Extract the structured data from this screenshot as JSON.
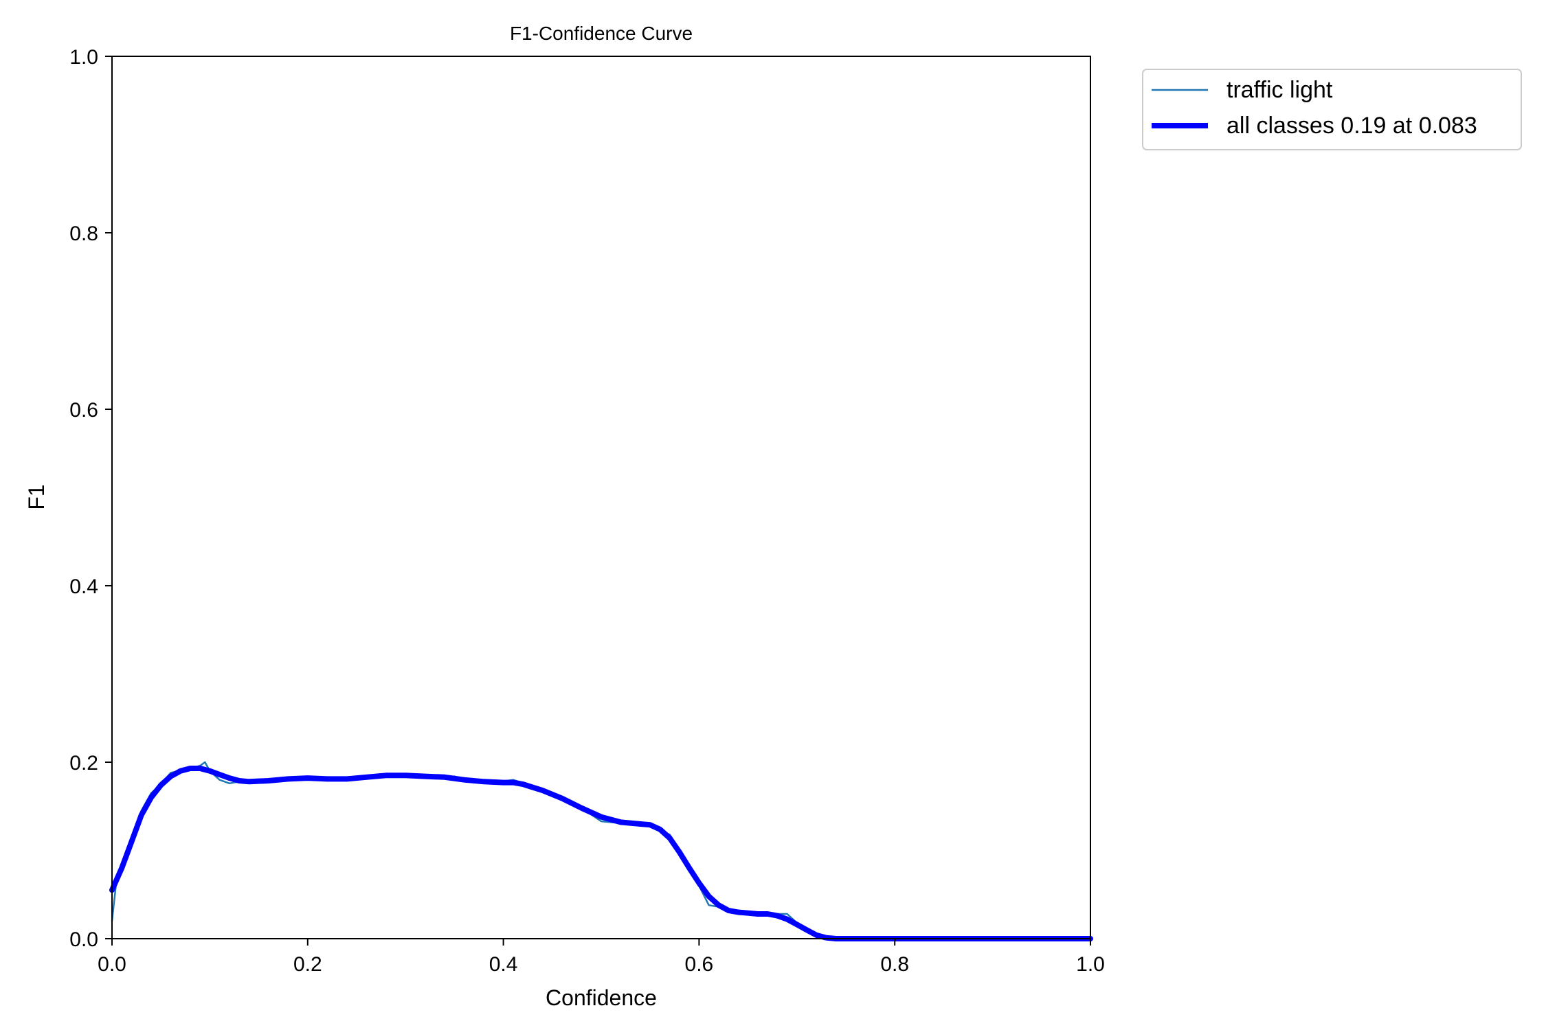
{
  "chart_data": {
    "type": "line",
    "title": "F1-Confidence Curve",
    "xlabel": "Confidence",
    "ylabel": "F1",
    "xlim": [
      0,
      1
    ],
    "ylim": [
      0,
      1
    ],
    "xticks": [
      "0.0",
      "0.2",
      "0.4",
      "0.6",
      "0.8",
      "1.0"
    ],
    "yticks": [
      "0.0",
      "0.2",
      "0.4",
      "0.6",
      "0.8",
      "1.0"
    ],
    "grid": false,
    "legend_position": "outside-top-right",
    "series": [
      {
        "name": "traffic light",
        "color": "#1f77b4",
        "x": [
          0.0,
          0.005,
          0.01,
          0.02,
          0.03,
          0.04,
          0.05,
          0.06,
          0.07,
          0.08,
          0.09,
          0.095,
          0.1,
          0.11,
          0.12,
          0.13,
          0.15,
          0.18,
          0.2,
          0.23,
          0.25,
          0.28,
          0.3,
          0.33,
          0.35,
          0.36,
          0.37,
          0.39,
          0.41,
          0.43,
          0.45,
          0.48,
          0.5,
          0.52,
          0.54,
          0.55,
          0.57,
          0.58,
          0.6,
          0.61,
          0.62,
          0.63,
          0.65,
          0.67,
          0.69,
          0.7,
          0.71,
          0.72,
          0.73,
          0.75,
          0.8,
          0.9,
          1.0
        ],
        "y": [
          0.02,
          0.07,
          0.085,
          0.115,
          0.145,
          0.165,
          0.175,
          0.188,
          0.19,
          0.193,
          0.196,
          0.2,
          0.19,
          0.18,
          0.176,
          0.178,
          0.179,
          0.181,
          0.182,
          0.181,
          0.183,
          0.185,
          0.186,
          0.183,
          0.184,
          0.18,
          0.177,
          0.177,
          0.18,
          0.173,
          0.165,
          0.148,
          0.133,
          0.131,
          0.132,
          0.127,
          0.118,
          0.1,
          0.06,
          0.038,
          0.036,
          0.032,
          0.03,
          0.028,
          0.028,
          0.018,
          0.01,
          0.003,
          0.0,
          0.0,
          0.0,
          0.0,
          0.0
        ]
      },
      {
        "name": "all classes 0.19 at 0.083",
        "color": "#0000ff",
        "x": [
          0.0,
          0.01,
          0.02,
          0.03,
          0.04,
          0.05,
          0.06,
          0.07,
          0.08,
          0.09,
          0.1,
          0.11,
          0.12,
          0.13,
          0.14,
          0.16,
          0.18,
          0.2,
          0.22,
          0.24,
          0.26,
          0.28,
          0.3,
          0.32,
          0.34,
          0.36,
          0.38,
          0.4,
          0.41,
          0.42,
          0.44,
          0.46,
          0.48,
          0.5,
          0.52,
          0.54,
          0.55,
          0.56,
          0.57,
          0.58,
          0.59,
          0.6,
          0.61,
          0.62,
          0.63,
          0.64,
          0.65,
          0.66,
          0.67,
          0.68,
          0.69,
          0.7,
          0.71,
          0.72,
          0.73,
          0.74,
          0.75,
          0.8,
          0.9,
          1.0
        ],
        "y": [
          0.055,
          0.08,
          0.11,
          0.14,
          0.16,
          0.174,
          0.184,
          0.19,
          0.193,
          0.193,
          0.19,
          0.186,
          0.182,
          0.179,
          0.178,
          0.179,
          0.181,
          0.182,
          0.181,
          0.181,
          0.183,
          0.185,
          0.185,
          0.184,
          0.183,
          0.18,
          0.178,
          0.177,
          0.177,
          0.175,
          0.168,
          0.159,
          0.148,
          0.138,
          0.132,
          0.13,
          0.129,
          0.124,
          0.114,
          0.098,
          0.08,
          0.063,
          0.048,
          0.038,
          0.032,
          0.03,
          0.029,
          0.028,
          0.028,
          0.026,
          0.022,
          0.016,
          0.01,
          0.004,
          0.001,
          0.0,
          0.0,
          0.0,
          0.0,
          0.0
        ]
      }
    ]
  }
}
